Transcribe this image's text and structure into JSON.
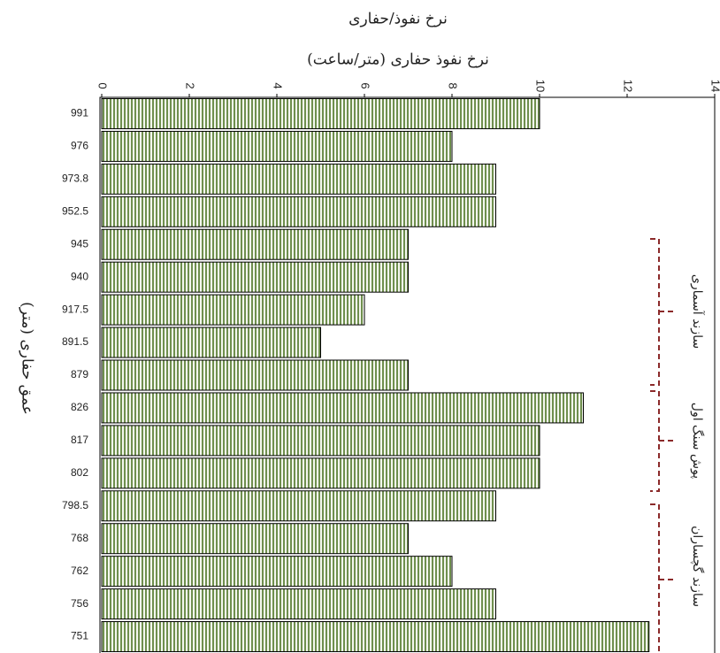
{
  "chart_data": {
    "type": "bar",
    "orientation": "horizontal",
    "title": "نرخ نفوذ/حفاری",
    "x_label": "نرخ نفوذ حفاری (متر/ساعت)",
    "y_label": "عمق حفاری (متر)",
    "categories": [
      "991",
      "976",
      "973.8",
      "952.5",
      "945",
      "940",
      "917.5",
      "891.5",
      "879",
      "826",
      "817",
      "802",
      "798.5",
      "768",
      "762",
      "756",
      "751"
    ],
    "values": [
      10,
      8,
      9,
      9,
      7,
      7,
      6,
      5,
      7,
      11,
      10,
      10,
      9,
      7,
      8,
      9,
      12.5
    ],
    "color": "#6f8f4e",
    "xlim": [
      0,
      14
    ],
    "xticks": [
      0,
      2,
      4,
      6,
      8,
      10,
      12,
      14
    ],
    "annotations": [
      "سازند آسماری",
      "پوش سنگ اول",
      "سازند گچساران"
    ]
  }
}
